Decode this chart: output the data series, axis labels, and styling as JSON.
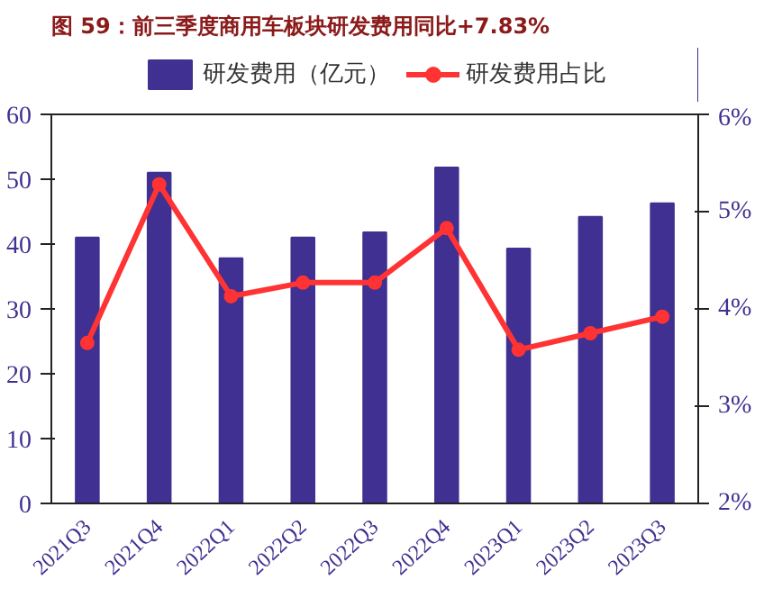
{
  "chart_data": {
    "type": "bar",
    "title": "图 59：前三季度商用车板块研发费用同比+7.83%",
    "categories": [
      "2021Q3",
      "2021Q4",
      "2022Q1",
      "2022Q2",
      "2022Q3",
      "2022Q4",
      "2023Q1",
      "2023Q2",
      "2023Q3"
    ],
    "series": [
      {
        "name": "研发费用（亿元）",
        "color": "#3f3091",
        "values": [
          41,
          51,
          37.8,
          41,
          41.8,
          51.8,
          39.3,
          44.2,
          46.3
        ]
      },
      {
        "name": "研发费用占比",
        "type": "line",
        "axis": "y2",
        "color": "#ff3333",
        "marker": "circle",
        "values": [
          3.65,
          5.28,
          4.13,
          4.27,
          4.27,
          4.83,
          3.58,
          3.75,
          3.92
        ]
      }
    ],
    "ylim": [
      0,
      60
    ],
    "yticks": [
      0,
      10,
      20,
      30,
      40,
      50,
      60
    ],
    "y2lim": [
      2,
      6
    ],
    "y2ticks": [
      {
        "value": 2,
        "label": "2%"
      },
      {
        "value": 3,
        "label": "3%"
      },
      {
        "value": 4,
        "label": "4%"
      },
      {
        "value": 5,
        "label": "5%"
      },
      {
        "value": 6,
        "label": "6%"
      }
    ],
    "grid": false,
    "legend": "top"
  }
}
